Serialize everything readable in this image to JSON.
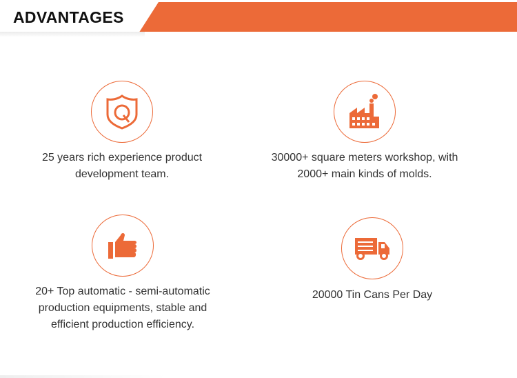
{
  "header": {
    "title": "ADVANTAGES",
    "accent_color": "#ec6a38"
  },
  "items": [
    {
      "icon": "quality-shield-icon",
      "text": "25 years rich experience product development team."
    },
    {
      "icon": "factory-icon",
      "text": "30000+ square meters workshop, with 2000+ main kinds of molds."
    },
    {
      "icon": "thumbs-up-icon",
      "text": "20+ Top automatic - semi-automatic production equipments, stable and efficient production efficiency."
    },
    {
      "icon": "delivery-truck-icon",
      "text": "20000 Tin Cans Per Day"
    }
  ]
}
